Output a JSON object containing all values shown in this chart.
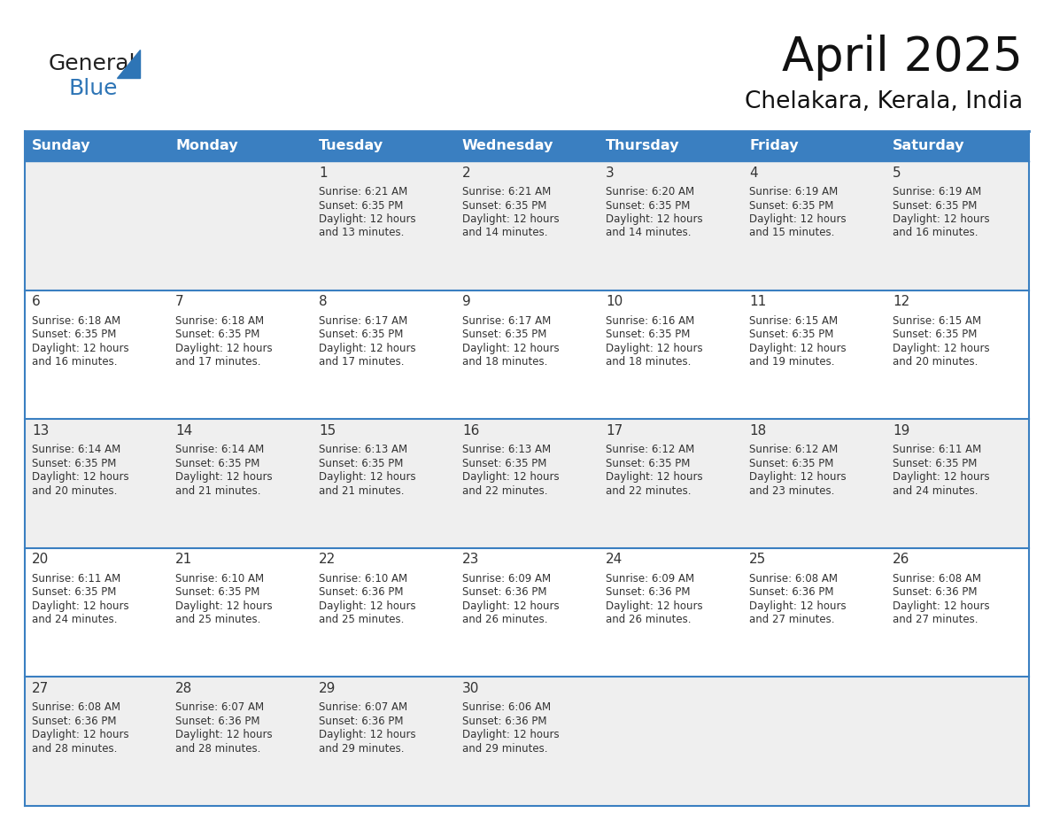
{
  "title": "April 2025",
  "subtitle": "Chelakara, Kerala, India",
  "header_bg": "#3A7FC1",
  "header_text_color": "#FFFFFF",
  "day_names": [
    "Sunday",
    "Monday",
    "Tuesday",
    "Wednesday",
    "Thursday",
    "Friday",
    "Saturday"
  ],
  "bg_color": "#FFFFFF",
  "cell_bg_even": "#EFEFEF",
  "cell_bg_odd": "#FFFFFF",
  "border_color": "#3A7FC1",
  "text_color": "#333333",
  "days": [
    {
      "date": 1,
      "col": 2,
      "row": 0,
      "sunrise": "6:21 AM",
      "sunset": "6:35 PM",
      "daylight": "12 hours",
      "daylight2": "and 13 minutes."
    },
    {
      "date": 2,
      "col": 3,
      "row": 0,
      "sunrise": "6:21 AM",
      "sunset": "6:35 PM",
      "daylight": "12 hours",
      "daylight2": "and 14 minutes."
    },
    {
      "date": 3,
      "col": 4,
      "row": 0,
      "sunrise": "6:20 AM",
      "sunset": "6:35 PM",
      "daylight": "12 hours",
      "daylight2": "and 14 minutes."
    },
    {
      "date": 4,
      "col": 5,
      "row": 0,
      "sunrise": "6:19 AM",
      "sunset": "6:35 PM",
      "daylight": "12 hours",
      "daylight2": "and 15 minutes."
    },
    {
      "date": 5,
      "col": 6,
      "row": 0,
      "sunrise": "6:19 AM",
      "sunset": "6:35 PM",
      "daylight": "12 hours",
      "daylight2": "and 16 minutes."
    },
    {
      "date": 6,
      "col": 0,
      "row": 1,
      "sunrise": "6:18 AM",
      "sunset": "6:35 PM",
      "daylight": "12 hours",
      "daylight2": "and 16 minutes."
    },
    {
      "date": 7,
      "col": 1,
      "row": 1,
      "sunrise": "6:18 AM",
      "sunset": "6:35 PM",
      "daylight": "12 hours",
      "daylight2": "and 17 minutes."
    },
    {
      "date": 8,
      "col": 2,
      "row": 1,
      "sunrise": "6:17 AM",
      "sunset": "6:35 PM",
      "daylight": "12 hours",
      "daylight2": "and 17 minutes."
    },
    {
      "date": 9,
      "col": 3,
      "row": 1,
      "sunrise": "6:17 AM",
      "sunset": "6:35 PM",
      "daylight": "12 hours",
      "daylight2": "and 18 minutes."
    },
    {
      "date": 10,
      "col": 4,
      "row": 1,
      "sunrise": "6:16 AM",
      "sunset": "6:35 PM",
      "daylight": "12 hours",
      "daylight2": "and 18 minutes."
    },
    {
      "date": 11,
      "col": 5,
      "row": 1,
      "sunrise": "6:15 AM",
      "sunset": "6:35 PM",
      "daylight": "12 hours",
      "daylight2": "and 19 minutes."
    },
    {
      "date": 12,
      "col": 6,
      "row": 1,
      "sunrise": "6:15 AM",
      "sunset": "6:35 PM",
      "daylight": "12 hours",
      "daylight2": "and 20 minutes."
    },
    {
      "date": 13,
      "col": 0,
      "row": 2,
      "sunrise": "6:14 AM",
      "sunset": "6:35 PM",
      "daylight": "12 hours",
      "daylight2": "and 20 minutes."
    },
    {
      "date": 14,
      "col": 1,
      "row": 2,
      "sunrise": "6:14 AM",
      "sunset": "6:35 PM",
      "daylight": "12 hours",
      "daylight2": "and 21 minutes."
    },
    {
      "date": 15,
      "col": 2,
      "row": 2,
      "sunrise": "6:13 AM",
      "sunset": "6:35 PM",
      "daylight": "12 hours",
      "daylight2": "and 21 minutes."
    },
    {
      "date": 16,
      "col": 3,
      "row": 2,
      "sunrise": "6:13 AM",
      "sunset": "6:35 PM",
      "daylight": "12 hours",
      "daylight2": "and 22 minutes."
    },
    {
      "date": 17,
      "col": 4,
      "row": 2,
      "sunrise": "6:12 AM",
      "sunset": "6:35 PM",
      "daylight": "12 hours",
      "daylight2": "and 22 minutes."
    },
    {
      "date": 18,
      "col": 5,
      "row": 2,
      "sunrise": "6:12 AM",
      "sunset": "6:35 PM",
      "daylight": "12 hours",
      "daylight2": "and 23 minutes."
    },
    {
      "date": 19,
      "col": 6,
      "row": 2,
      "sunrise": "6:11 AM",
      "sunset": "6:35 PM",
      "daylight": "12 hours",
      "daylight2": "and 24 minutes."
    },
    {
      "date": 20,
      "col": 0,
      "row": 3,
      "sunrise": "6:11 AM",
      "sunset": "6:35 PM",
      "daylight": "12 hours",
      "daylight2": "and 24 minutes."
    },
    {
      "date": 21,
      "col": 1,
      "row": 3,
      "sunrise": "6:10 AM",
      "sunset": "6:35 PM",
      "daylight": "12 hours",
      "daylight2": "and 25 minutes."
    },
    {
      "date": 22,
      "col": 2,
      "row": 3,
      "sunrise": "6:10 AM",
      "sunset": "6:36 PM",
      "daylight": "12 hours",
      "daylight2": "and 25 minutes."
    },
    {
      "date": 23,
      "col": 3,
      "row": 3,
      "sunrise": "6:09 AM",
      "sunset": "6:36 PM",
      "daylight": "12 hours",
      "daylight2": "and 26 minutes."
    },
    {
      "date": 24,
      "col": 4,
      "row": 3,
      "sunrise": "6:09 AM",
      "sunset": "6:36 PM",
      "daylight": "12 hours",
      "daylight2": "and 26 minutes."
    },
    {
      "date": 25,
      "col": 5,
      "row": 3,
      "sunrise": "6:08 AM",
      "sunset": "6:36 PM",
      "daylight": "12 hours",
      "daylight2": "and 27 minutes."
    },
    {
      "date": 26,
      "col": 6,
      "row": 3,
      "sunrise": "6:08 AM",
      "sunset": "6:36 PM",
      "daylight": "12 hours",
      "daylight2": "and 27 minutes."
    },
    {
      "date": 27,
      "col": 0,
      "row": 4,
      "sunrise": "6:08 AM",
      "sunset": "6:36 PM",
      "daylight": "12 hours",
      "daylight2": "and 28 minutes."
    },
    {
      "date": 28,
      "col": 1,
      "row": 4,
      "sunrise": "6:07 AM",
      "sunset": "6:36 PM",
      "daylight": "12 hours",
      "daylight2": "and 28 minutes."
    },
    {
      "date": 29,
      "col": 2,
      "row": 4,
      "sunrise": "6:07 AM",
      "sunset": "6:36 PM",
      "daylight": "12 hours",
      "daylight2": "and 29 minutes."
    },
    {
      "date": 30,
      "col": 3,
      "row": 4,
      "sunrise": "6:06 AM",
      "sunset": "6:36 PM",
      "daylight": "12 hours",
      "daylight2": "and 29 minutes."
    }
  ],
  "logo_text1": "General",
  "logo_text2": "Blue",
  "logo_color1": "#222222",
  "logo_color2": "#2E75B6",
  "logo_triangle_color": "#2E75B6",
  "title_fontsize": 38,
  "subtitle_fontsize": 19,
  "header_fontsize": 11.5,
  "date_fontsize": 11,
  "info_fontsize": 8.5
}
